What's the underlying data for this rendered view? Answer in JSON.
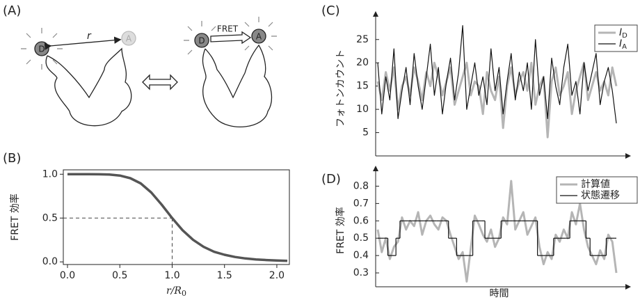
{
  "panel_labels": [
    "(A)",
    "(B)",
    "(C)",
    "(D)"
  ],
  "diagram": {
    "distance_label": "r",
    "donor": "D",
    "acceptor": "A",
    "transfer_label": "FRET"
  },
  "chart_data": [
    {
      "type": "line",
      "xlabel": [
        "r/R",
        "0"
      ],
      "ylabel": "FRET 効率",
      "x": [
        0,
        0.1,
        0.2,
        0.3,
        0.4,
        0.5,
        0.6,
        0.7,
        0.8,
        0.9,
        1.0,
        1.1,
        1.2,
        1.3,
        1.4,
        1.5,
        1.6,
        1.7,
        1.8,
        1.9,
        2.0,
        2.1
      ],
      "values": [
        1,
        1,
        1,
        0.999,
        0.996,
        0.985,
        0.955,
        0.895,
        0.792,
        0.653,
        0.5,
        0.361,
        0.251,
        0.172,
        0.115,
        0.081,
        0.056,
        0.039,
        0.028,
        0.021,
        0.015,
        0.011
      ],
      "color": "#555555",
      "reference_point": [
        1.0,
        0.5
      ],
      "xlim": [
        -0.04,
        2.12
      ],
      "xticks": [
        {
          "value": 0,
          "label": "0.0"
        },
        {
          "value": 0.5,
          "label": "0.5"
        },
        {
          "value": 1,
          "label": "1.0"
        },
        {
          "value": 1.5,
          "label": "1.5"
        },
        {
          "value": 2,
          "label": "2.0"
        }
      ],
      "ylim": [
        -0.03,
        1.05
      ],
      "yticks": [
        {
          "value": 0,
          "label": "0.0"
        },
        {
          "value": 0.5,
          "label": "0.5"
        },
        {
          "value": 1,
          "label": "1.0"
        }
      ]
    },
    {
      "type": "line",
      "ylabel": "フォトンカウント",
      "series": [
        {
          "name": "ID",
          "color": "#b5b5b5",
          "values": [
            16,
            12,
            18,
            14,
            19,
            10,
            15,
            17,
            13,
            19,
            16,
            12,
            18,
            15,
            20,
            17,
            13,
            16,
            19,
            11,
            14,
            17,
            20,
            13,
            16,
            15,
            9,
            18,
            14,
            12,
            17,
            6,
            15,
            19,
            13,
            16,
            18,
            14,
            20,
            11,
            15,
            17,
            4,
            16,
            19,
            13,
            15,
            18,
            9,
            14,
            17,
            20,
            12,
            15,
            18,
            14,
            16,
            13,
            19,
            15
          ]
        },
        {
          "name": "IA",
          "color": "#111111",
          "values": [
            20,
            9,
            17,
            12,
            23,
            8,
            14,
            19,
            11,
            22,
            15,
            10,
            17,
            24,
            13,
            19,
            9,
            16,
            21,
            12,
            18,
            28,
            10,
            15,
            20,
            13,
            17,
            11,
            23,
            14,
            19,
            9,
            16,
            22,
            12,
            18,
            14,
            20,
            10,
            25,
            13,
            17,
            8,
            21,
            15,
            11,
            19,
            24,
            13,
            16,
            9,
            20,
            14,
            18,
            22,
            11,
            16,
            19,
            14,
            7
          ]
        }
      ],
      "ylim": [
        0,
        29
      ],
      "yticks": [
        5,
        10,
        15,
        20,
        25
      ]
    },
    {
      "type": "line",
      "xlabel": "時間",
      "ylabel": "FRET 効率",
      "series": [
        {
          "name": "計算値",
          "color": "#b5b5b5",
          "values": [
            0.55,
            0.42,
            0.5,
            0.38,
            0.45,
            0.48,
            0.62,
            0.55,
            0.6,
            0.57,
            0.65,
            0.52,
            0.6,
            0.63,
            0.58,
            0.55,
            0.62,
            0.6,
            0.52,
            0.45,
            0.38,
            0.42,
            0.25,
            0.44,
            0.63,
            0.58,
            0.52,
            0.48,
            0.55,
            0.45,
            0.5,
            0.62,
            0.58,
            0.83,
            0.55,
            0.6,
            0.65,
            0.52,
            0.57,
            0.62,
            0.45,
            0.35,
            0.42,
            0.38,
            0.52,
            0.48,
            0.55,
            0.5,
            0.65,
            0.58,
            0.7,
            0.55,
            0.45,
            0.4,
            0.35,
            0.43,
            0.38,
            0.52,
            0.48,
            0.3
          ]
        },
        {
          "name": "状態遷移",
          "color": "#111111",
          "step": true,
          "values": [
            0.5,
            0.5,
            0.5,
            0.4,
            0.4,
            0.5,
            0.6,
            0.6,
            0.6,
            0.6,
            0.6,
            0.6,
            0.6,
            0.6,
            0.6,
            0.6,
            0.6,
            0.6,
            0.5,
            0.5,
            0.4,
            0.4,
            0.4,
            0.4,
            0.6,
            0.6,
            0.6,
            0.5,
            0.5,
            0.5,
            0.5,
            0.6,
            0.6,
            0.6,
            0.6,
            0.6,
            0.6,
            0.6,
            0.6,
            0.6,
            0.4,
            0.4,
            0.4,
            0.4,
            0.5,
            0.5,
            0.5,
            0.5,
            0.6,
            0.6,
            0.6,
            0.6,
            0.5,
            0.4,
            0.4,
            0.4,
            0.4,
            0.5,
            0.5,
            0.5
          ]
        }
      ],
      "ylim": [
        0.22,
        0.87
      ],
      "yticks": [
        {
          "value": 0.3,
          "label": "0.3"
        },
        {
          "value": 0.4,
          "label": "0.4"
        },
        {
          "value": 0.5,
          "label": "0.5"
        },
        {
          "value": 0.6,
          "label": "0.6"
        },
        {
          "value": 0.7,
          "label": "0.7"
        },
        {
          "value": 0.8,
          "label": "0.8"
        }
      ]
    }
  ]
}
